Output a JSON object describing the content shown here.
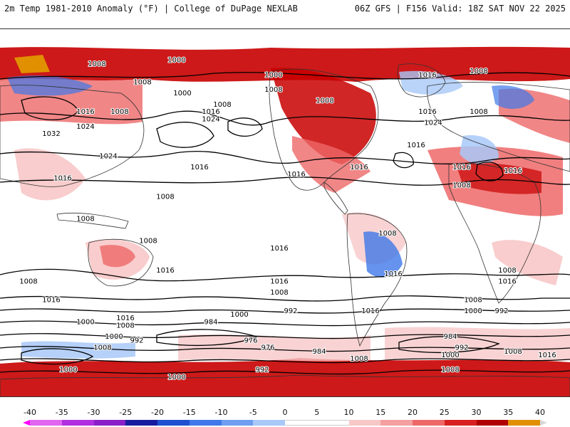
{
  "header": {
    "title_left": "2m Temp 1981-2010 Anomaly (°F) | College of DuPage NEXLAB",
    "title_right": "06Z GFS | F156 Valid: 18Z SAT NOV 22 2025"
  },
  "colorbar": {
    "ticks": [
      "-40",
      "-35",
      "-30",
      "-25",
      "-20",
      "-15",
      "-10",
      "-5",
      "0",
      "5",
      "10",
      "15",
      "20",
      "25",
      "30",
      "35",
      "40"
    ],
    "colors": [
      "#e066f0",
      "#b030e0",
      "#8a1ec8",
      "#1a1aa0",
      "#1e50d0",
      "#3f78e8",
      "#6f9ef0",
      "#a8c8f8",
      "#ffffff",
      "#ffffff",
      "#f8c8c8",
      "#f4a0a0",
      "#ee6868",
      "#d82020",
      "#b00000",
      "#e09000",
      "#f8d000"
    ],
    "cap_left_color": "#ff00ff",
    "cap_right_color": "#d8d8d8"
  },
  "map": {
    "isobar_labels": [
      {
        "text": "1008",
        "lon": 0.17,
        "lat": 0.1
      },
      {
        "text": "1000",
        "lon": 0.31,
        "lat": 0.09
      },
      {
        "text": "1000",
        "lon": 0.48,
        "lat": 0.13
      },
      {
        "text": "1008",
        "lon": 0.25,
        "lat": 0.15
      },
      {
        "text": "1000",
        "lon": 0.32,
        "lat": 0.18
      },
      {
        "text": "1008",
        "lon": 0.48,
        "lat": 0.17
      },
      {
        "text": "1008",
        "lon": 0.57,
        "lat": 0.2
      },
      {
        "text": "1016",
        "lon": 0.75,
        "lat": 0.13
      },
      {
        "text": "1008",
        "lon": 0.84,
        "lat": 0.12
      },
      {
        "text": "1008",
        "lon": 0.39,
        "lat": 0.21
      },
      {
        "text": "1016",
        "lon": 0.37,
        "lat": 0.23
      },
      {
        "text": "1016",
        "lon": 0.15,
        "lat": 0.23
      },
      {
        "text": "1008",
        "lon": 0.21,
        "lat": 0.23
      },
      {
        "text": "1024",
        "lon": 0.37,
        "lat": 0.25
      },
      {
        "text": "1016",
        "lon": 0.75,
        "lat": 0.23
      },
      {
        "text": "1008",
        "lon": 0.84,
        "lat": 0.23
      },
      {
        "text": "1024",
        "lon": 0.15,
        "lat": 0.27
      },
      {
        "text": "1024",
        "lon": 0.76,
        "lat": 0.26
      },
      {
        "text": "1032",
        "lon": 0.09,
        "lat": 0.29
      },
      {
        "text": "1016",
        "lon": 0.73,
        "lat": 0.32
      },
      {
        "text": "1024",
        "lon": 0.19,
        "lat": 0.35
      },
      {
        "text": "1016",
        "lon": 0.35,
        "lat": 0.38
      },
      {
        "text": "1016",
        "lon": 0.52,
        "lat": 0.4
      },
      {
        "text": "1016",
        "lon": 0.63,
        "lat": 0.38
      },
      {
        "text": "1016",
        "lon": 0.81,
        "lat": 0.38
      },
      {
        "text": "1016",
        "lon": 0.9,
        "lat": 0.39
      },
      {
        "text": "1016",
        "lon": 0.11,
        "lat": 0.41
      },
      {
        "text": "1008",
        "lon": 0.81,
        "lat": 0.43
      },
      {
        "text": "1008",
        "lon": 0.29,
        "lat": 0.46
      },
      {
        "text": "1008",
        "lon": 0.15,
        "lat": 0.52
      },
      {
        "text": "1008",
        "lon": 0.68,
        "lat": 0.56
      },
      {
        "text": "1008",
        "lon": 0.26,
        "lat": 0.58
      },
      {
        "text": "1016",
        "lon": 0.49,
        "lat": 0.6
      },
      {
        "text": "1016",
        "lon": 0.69,
        "lat": 0.67
      },
      {
        "text": "1016",
        "lon": 0.29,
        "lat": 0.66
      },
      {
        "text": "1008",
        "lon": 0.89,
        "lat": 0.66
      },
      {
        "text": "1008",
        "lon": 0.05,
        "lat": 0.69
      },
      {
        "text": "1016",
        "lon": 0.49,
        "lat": 0.69
      },
      {
        "text": "1016",
        "lon": 0.89,
        "lat": 0.69
      },
      {
        "text": "1016",
        "lon": 0.09,
        "lat": 0.74
      },
      {
        "text": "1008",
        "lon": 0.49,
        "lat": 0.72
      },
      {
        "text": "1008",
        "lon": 0.83,
        "lat": 0.74
      },
      {
        "text": "1016",
        "lon": 0.65,
        "lat": 0.77
      },
      {
        "text": "1000",
        "lon": 0.42,
        "lat": 0.78
      },
      {
        "text": "992",
        "lon": 0.51,
        "lat": 0.77
      },
      {
        "text": "1000",
        "lon": 0.83,
        "lat": 0.77
      },
      {
        "text": "992",
        "lon": 0.88,
        "lat": 0.77
      },
      {
        "text": "1016",
        "lon": 0.22,
        "lat": 0.79
      },
      {
        "text": "1008",
        "lon": 0.22,
        "lat": 0.81
      },
      {
        "text": "1000",
        "lon": 0.15,
        "lat": 0.8
      },
      {
        "text": "984",
        "lon": 0.37,
        "lat": 0.8
      },
      {
        "text": "976",
        "lon": 0.44,
        "lat": 0.85
      },
      {
        "text": "976",
        "lon": 0.47,
        "lat": 0.87
      },
      {
        "text": "984",
        "lon": 0.79,
        "lat": 0.84
      },
      {
        "text": "1000",
        "lon": 0.2,
        "lat": 0.84
      },
      {
        "text": "992",
        "lon": 0.24,
        "lat": 0.85
      },
      {
        "text": "1008",
        "lon": 0.18,
        "lat": 0.87
      },
      {
        "text": "992",
        "lon": 0.81,
        "lat": 0.87
      },
      {
        "text": "984",
        "lon": 0.56,
        "lat": 0.88
      },
      {
        "text": "1000",
        "lon": 0.79,
        "lat": 0.89
      },
      {
        "text": "1008",
        "lon": 0.9,
        "lat": 0.88
      },
      {
        "text": "1016",
        "lon": 0.96,
        "lat": 0.89
      },
      {
        "text": "1008",
        "lon": 0.63,
        "lat": 0.9
      },
      {
        "text": "1000",
        "lon": 0.12,
        "lat": 0.93
      },
      {
        "text": "992",
        "lon": 0.46,
        "lat": 0.93
      },
      {
        "text": "1000",
        "lon": 0.31,
        "lat": 0.95
      },
      {
        "text": "1008",
        "lon": 0.79,
        "lat": 0.93
      }
    ],
    "colors": {
      "warm_strong": "#c80000",
      "warm_mid": "#ee6868",
      "warm_light": "#f8c8c8",
      "cold_mid": "#3f78e8",
      "cold_light": "#a8c8f8",
      "land_outline": "#333333",
      "isobar": "#000000"
    }
  }
}
